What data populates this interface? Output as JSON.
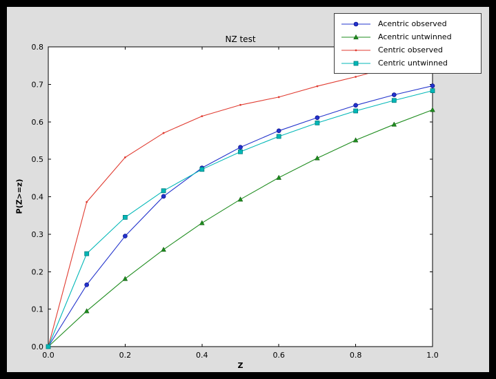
{
  "chart_data": {
    "type": "line",
    "title": "NZ test",
    "xlabel": "Z",
    "ylabel": "P(Z>=z)",
    "xlim": [
      0.0,
      1.0
    ],
    "ylim": [
      0.0,
      0.8
    ],
    "xticks": [
      0.0,
      0.2,
      0.4,
      0.6,
      0.8,
      1.0
    ],
    "yticks": [
      0.0,
      0.1,
      0.2,
      0.3,
      0.4,
      0.5,
      0.6,
      0.7,
      0.8
    ],
    "grid": false,
    "legend_position": "upper right",
    "x": [
      0.0,
      0.1,
      0.2,
      0.3,
      0.4,
      0.5,
      0.6,
      0.7,
      0.8,
      0.9,
      1.0
    ],
    "series": [
      {
        "name": "Acentric observed",
        "color": "#2233cc",
        "marker": "circle",
        "values": [
          0.0,
          0.165,
          0.295,
          0.401,
          0.477,
          0.532,
          0.576,
          0.611,
          0.644,
          0.672,
          0.696
        ]
      },
      {
        "name": "Acentric untwinned",
        "color": "#1e8c1e",
        "marker": "triangle",
        "values": [
          0.0,
          0.095,
          0.181,
          0.259,
          0.33,
          0.393,
          0.451,
          0.503,
          0.551,
          0.593,
          0.632
        ]
      },
      {
        "name": "Centric observed",
        "color": "#e03a2f",
        "marker": "dot",
        "values": [
          0.0,
          0.386,
          0.505,
          0.57,
          0.615,
          0.645,
          0.666,
          0.695,
          0.72,
          0.748,
          0.772
        ]
      },
      {
        "name": "Centric untwinned",
        "color": "#00b7b7",
        "marker": "square",
        "marker_edge": "#007d7d",
        "values": [
          0.0,
          0.248,
          0.345,
          0.416,
          0.473,
          0.52,
          0.561,
          0.597,
          0.629,
          0.657,
          0.683
        ]
      }
    ]
  },
  "colors": {
    "outer_background": "#000000",
    "figure_background": "#dedede",
    "plot_background": "#ffffff",
    "axes_frame": "#000000",
    "legend_background": "#ffffff",
    "legend_border": "#3a3a3a"
  }
}
